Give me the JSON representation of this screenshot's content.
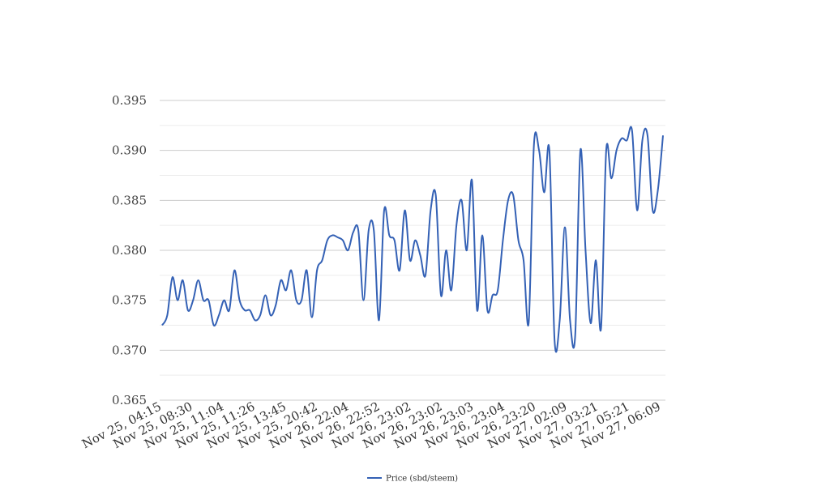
{
  "chart_data": {
    "type": "line",
    "title": "",
    "xlabel": "",
    "ylabel": "",
    "ylim": [
      0.365,
      0.395
    ],
    "yticks": [
      "0.365",
      "0.370",
      "0.375",
      "0.380",
      "0.385",
      "0.390",
      "0.395"
    ],
    "xtick_labels": [
      "Nov 25, 04:15",
      "Nov 25, 08:30",
      "Nov 25, 11:04",
      "Nov 25, 11:26",
      "Nov 25, 13:45",
      "Nov 25, 20:42",
      "Nov 26, 22:04",
      "Nov 26, 22:52",
      "Nov 26, 23:02",
      "Nov 26, 23:02",
      "Nov 26, 23:03",
      "Nov 26, 23:04",
      "Nov 26, 23:20",
      "Nov 27, 02:09",
      "Nov 27, 03:21",
      "Nov 27, 05:21",
      "Nov 27, 06:09"
    ],
    "grid": true,
    "legend_position": "bottom",
    "series": [
      {
        "name": "Price (sbd/steem)",
        "color": "#3461b5",
        "values": [
          0.3725,
          0.3735,
          0.3773,
          0.375,
          0.377,
          0.374,
          0.375,
          0.377,
          0.375,
          0.375,
          0.3725,
          0.3735,
          0.375,
          0.374,
          0.378,
          0.375,
          0.374,
          0.374,
          0.373,
          0.3735,
          0.3755,
          0.3735,
          0.3745,
          0.377,
          0.376,
          0.378,
          0.375,
          0.375,
          0.378,
          0.3733,
          0.378,
          0.379,
          0.381,
          0.3815,
          0.3813,
          0.381,
          0.38,
          0.3818,
          0.382,
          0.375,
          0.382,
          0.382,
          0.373,
          0.384,
          0.3815,
          0.381,
          0.378,
          0.384,
          0.379,
          0.381,
          0.3795,
          0.3775,
          0.384,
          0.3855,
          0.3755,
          0.38,
          0.376,
          0.3825,
          0.385,
          0.38,
          0.387,
          0.374,
          0.3815,
          0.374,
          0.3755,
          0.376,
          0.381,
          0.385,
          0.3855,
          0.381,
          0.379,
          0.3728,
          0.3905,
          0.39,
          0.3858,
          0.39,
          0.371,
          0.373,
          0.3823,
          0.373,
          0.3715,
          0.39,
          0.38,
          0.3727,
          0.379,
          0.3722,
          0.39,
          0.3872,
          0.39,
          0.3912,
          0.391,
          0.392,
          0.384,
          0.391,
          0.3915,
          0.384,
          0.386,
          0.3915
        ]
      }
    ]
  }
}
